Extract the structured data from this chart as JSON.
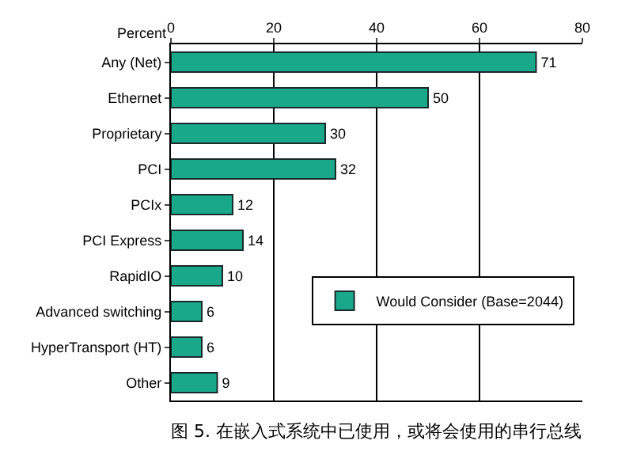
{
  "chart_data": {
    "type": "bar",
    "orientation": "horizontal",
    "categories": [
      "Any (Net)",
      "Ethernet",
      "Proprietary",
      "PCI",
      "PCIx",
      "PCI Express",
      "RapidIO",
      "Advanced switching",
      "HyperTransport (HT)",
      "Other"
    ],
    "series": [
      {
        "name": "Would Consider (Base=2044)",
        "color": "#1aa88a",
        "values": [
          71,
          50,
          30,
          32,
          12,
          14,
          10,
          6,
          6,
          9
        ]
      }
    ],
    "xlim": [
      0,
      80
    ],
    "xticks": [
      0,
      20,
      40,
      60,
      80
    ],
    "ylabel": "Percent",
    "grid": "x",
    "data_labels": true,
    "legend": "bottom right",
    "annotations": [
      "图 5. 在嵌入式系统中已使用，或将会使用的串行总线"
    ]
  }
}
